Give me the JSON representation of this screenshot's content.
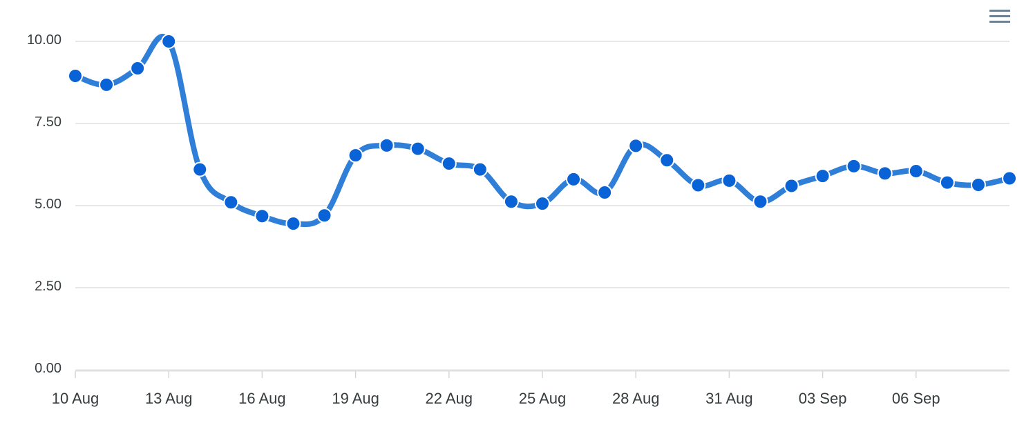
{
  "toolbar": {
    "menu_icon": "hamburger-menu-icon"
  },
  "colors": {
    "line": "#2f7ed8",
    "marker": "#0a63d6",
    "marker_stroke": "#ffffff",
    "grid": "#e0e0e0"
  },
  "chart_data": {
    "type": "line",
    "title": "",
    "xlabel": "",
    "ylabel": "",
    "grid": true,
    "legend": "none",
    "ylim": [
      0,
      10
    ],
    "y_ticks": [
      "0.00",
      "2.50",
      "5.00",
      "7.50",
      "10.00"
    ],
    "x_ticks": [
      "10 Aug",
      "13 Aug",
      "16 Aug",
      "19 Aug",
      "22 Aug",
      "25 Aug",
      "28 Aug",
      "31 Aug",
      "03 Sep",
      "06 Sep"
    ],
    "x_range": [
      "10 Aug",
      "09 Sep"
    ],
    "x": [
      "10 Aug",
      "11 Aug",
      "12 Aug",
      "13 Aug",
      "14 Aug",
      "15 Aug",
      "16 Aug",
      "17 Aug",
      "18 Aug",
      "19 Aug",
      "20 Aug",
      "21 Aug",
      "22 Aug",
      "23 Aug",
      "24 Aug",
      "25 Aug",
      "26 Aug",
      "27 Aug",
      "28 Aug",
      "29 Aug",
      "30 Aug",
      "31 Aug",
      "01 Sep",
      "02 Sep",
      "03 Sep",
      "04 Sep",
      "05 Sep",
      "06 Sep",
      "07 Sep",
      "08 Sep",
      "09 Sep"
    ],
    "series": [
      {
        "values": [
          8.95,
          8.68,
          9.18,
          10.0,
          6.1,
          5.1,
          4.68,
          4.45,
          4.7,
          6.53,
          6.83,
          6.73,
          6.28,
          6.1,
          5.12,
          5.06,
          5.8,
          5.4,
          6.82,
          6.38,
          5.62,
          5.76,
          5.12,
          5.6,
          5.9,
          6.2,
          5.98,
          6.05,
          5.7,
          5.63,
          5.83
        ]
      }
    ]
  }
}
